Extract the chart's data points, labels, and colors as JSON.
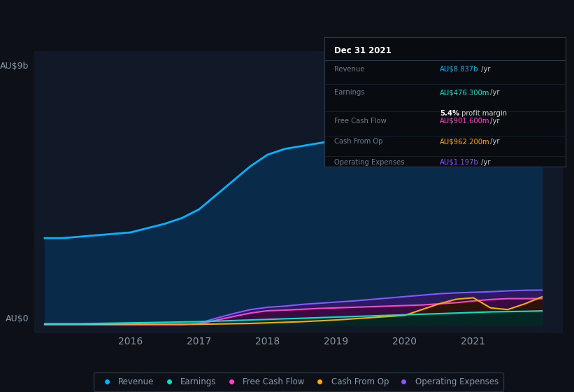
{
  "bg_color": "#0d1117",
  "plot_bg_color": "#111827",
  "title_box": {
    "date": "Dec 31 2021",
    "revenue_val": "AU$8.837b",
    "earnings_val": "AU$476.300m",
    "profit_margin": "5.4%",
    "fcf_val": "AU$901.600m",
    "cashfromop_val": "AU$962.200m",
    "opex_val": "AU$1.197b"
  },
  "years": [
    2014.75,
    2015.0,
    2015.25,
    2015.5,
    2015.75,
    2016.0,
    2016.25,
    2016.5,
    2016.75,
    2017.0,
    2017.25,
    2017.5,
    2017.75,
    2018.0,
    2018.25,
    2018.5,
    2018.75,
    2019.0,
    2019.25,
    2019.5,
    2019.75,
    2020.0,
    2020.25,
    2020.5,
    2020.75,
    2021.0,
    2021.25,
    2021.5,
    2021.75,
    2022.0
  ],
  "revenue": [
    3.0,
    3.0,
    3.05,
    3.1,
    3.15,
    3.2,
    3.35,
    3.5,
    3.7,
    4.0,
    4.5,
    5.0,
    5.5,
    5.9,
    6.1,
    6.2,
    6.3,
    6.4,
    6.55,
    6.7,
    6.85,
    7.0,
    7.5,
    7.9,
    8.3,
    8.5,
    8.7,
    8.8,
    8.84,
    8.837
  ],
  "earnings": [
    0.03,
    0.03,
    0.03,
    0.04,
    0.05,
    0.06,
    0.07,
    0.08,
    0.09,
    0.1,
    0.12,
    0.14,
    0.16,
    0.18,
    0.2,
    0.22,
    0.24,
    0.26,
    0.28,
    0.3,
    0.32,
    0.34,
    0.36,
    0.38,
    0.4,
    0.42,
    0.44,
    0.45,
    0.46,
    0.4763
  ],
  "free_cash_flow": [
    0.0,
    0.0,
    0.0,
    0.0,
    0.0,
    0.0,
    0.0,
    0.0,
    0.0,
    0.02,
    0.15,
    0.28,
    0.4,
    0.48,
    0.5,
    0.53,
    0.56,
    0.58,
    0.6,
    0.62,
    0.64,
    0.66,
    0.68,
    0.72,
    0.76,
    0.82,
    0.87,
    0.9,
    0.9,
    0.9016
  ],
  "cash_from_op": [
    0.01,
    0.01,
    0.01,
    0.01,
    0.01,
    0.01,
    0.01,
    0.01,
    0.01,
    0.01,
    0.02,
    0.03,
    0.04,
    0.06,
    0.08,
    0.1,
    0.13,
    0.16,
    0.2,
    0.24,
    0.28,
    0.32,
    0.52,
    0.72,
    0.88,
    0.93,
    0.58,
    0.52,
    0.72,
    0.9622
  ],
  "operating_expenses": [
    0.0,
    0.0,
    0.0,
    0.0,
    0.0,
    0.0,
    0.0,
    0.0,
    0.0,
    0.05,
    0.22,
    0.38,
    0.52,
    0.6,
    0.64,
    0.7,
    0.74,
    0.78,
    0.82,
    0.87,
    0.92,
    0.97,
    1.02,
    1.07,
    1.1,
    1.12,
    1.14,
    1.17,
    1.19,
    1.197
  ],
  "revenue_color": "#00b4ff",
  "revenue_fill": "#0a2a4a",
  "earnings_color": "#00e5cc",
  "fcf_color": "#ff44cc",
  "cashfromop_color": "#ffaa00",
  "opex_color": "#8855ff",
  "grid_color": "#1a2a3a",
  "text_color": "#8899aa",
  "label_color": "#556677",
  "xlim": [
    2014.6,
    2022.3
  ],
  "ylim": [
    -0.3,
    9.5
  ],
  "ytick_labels": [
    "AU$9b",
    "AU$0"
  ],
  "ytick_vals": [
    9,
    0
  ],
  "xtick_labels": [
    "2016",
    "2017",
    "2018",
    "2019",
    "2020",
    "2021"
  ],
  "xtick_vals": [
    2016,
    2017,
    2018,
    2019,
    2020,
    2021
  ]
}
